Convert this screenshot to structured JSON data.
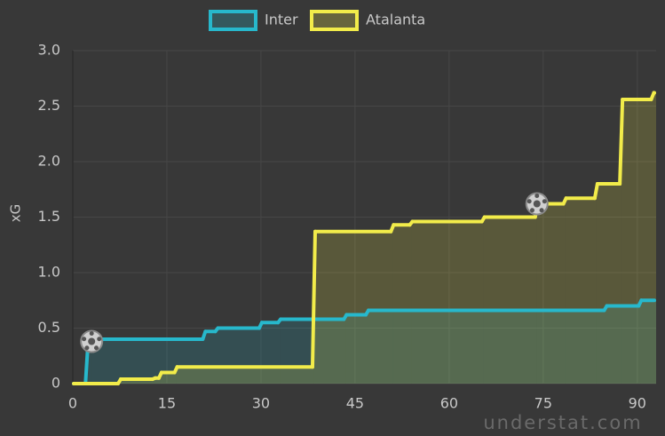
{
  "chart_data": {
    "type": "step",
    "y_label": "xG",
    "watermark": "understat.com",
    "xlim": [
      0,
      93
    ],
    "xticks": [
      0,
      15,
      30,
      45,
      60,
      75,
      90
    ],
    "ylim": [
      0,
      3
    ],
    "yticks": [
      0,
      0.5,
      {
        "value": 1,
        "label": "1.0"
      },
      1.5,
      {
        "value": 2,
        "label": "2.0"
      },
      2.5,
      {
        "value": 3,
        "label": "3.0"
      }
    ],
    "grid": true,
    "series": [
      {
        "name": "Inter",
        "color": "#27b8cc",
        "x": [
          0,
          2.3,
          3,
          21,
          23,
          30,
          33,
          43.5,
          47,
          85,
          90.5
        ],
        "values": [
          0,
          0.38,
          0.4,
          0.47,
          0.5,
          0.55,
          0.58,
          0.62,
          0.66,
          0.7,
          0.75
        ],
        "goal_x": [
          3
        ],
        "goal_y": [
          0.38
        ]
      },
      {
        "name": "Atalanta",
        "color": "#f2ec4a",
        "x": [
          0,
          7.5,
          13,
          14,
          16.5,
          38.5,
          51,
          54,
          65.5,
          74,
          78.5,
          83.5,
          87.5,
          92.5
        ],
        "values": [
          0,
          0.04,
          0.05,
          0.1,
          0.15,
          1.37,
          1.43,
          1.46,
          1.5,
          1.62,
          1.67,
          1.8,
          2.56,
          2.62
        ],
        "goal_x": [
          74
        ],
        "goal_y": [
          1.62
        ]
      }
    ]
  }
}
